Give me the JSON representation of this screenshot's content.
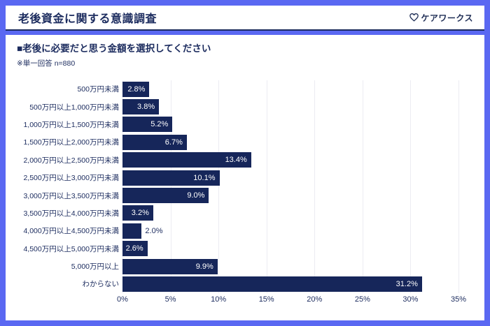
{
  "header": {
    "title": "老後資金に関する意識調査",
    "logo_text": "ケアワークス"
  },
  "question": {
    "label": "■老後に必要だと思う金額を選択してください",
    "note": "※単一回答 n=880"
  },
  "chart_data": {
    "type": "bar",
    "orientation": "horizontal",
    "title": "老後に必要だと思う金額を選択してください",
    "xlabel": "",
    "ylabel": "",
    "xlim": [
      0,
      35
    ],
    "grid": true,
    "x_ticks": [
      0,
      5,
      10,
      15,
      20,
      25,
      30,
      35
    ],
    "x_tick_labels": [
      "0%",
      "5%",
      "10%",
      "15%",
      "20%",
      "25%",
      "30%",
      "35%"
    ],
    "categories": [
      "500万円未満",
      "500万円以上1,000万円未満",
      "1,000万円以上1,500万円未満",
      "1,500万円以上2,000万円未満",
      "2,000万円以上2,500万円未満",
      "2,500万円以上3,000万円未満",
      "3,000万円以上3,500万円未満",
      "3,500万円以上4,000万円未満",
      "4,000万円以上4,500万円未満",
      "4,500万円以上5,000万円未満",
      "5,000万円以上",
      "わからない"
    ],
    "values": [
      2.8,
      3.8,
      5.2,
      6.7,
      13.4,
      10.1,
      9.0,
      3.2,
      2.0,
      2.6,
      9.9,
      31.2
    ],
    "value_labels": [
      "2.8%",
      "3.8%",
      "5.2%",
      "6.7%",
      "13.4%",
      "10.1%",
      "9.0%",
      "3.2%",
      "2.0%",
      "2.6%",
      "9.9%",
      "31.2%"
    ],
    "value_label_position": [
      "inside",
      "inside",
      "inside",
      "inside",
      "inside",
      "inside",
      "inside",
      "inside",
      "outside",
      "inside",
      "inside",
      "inside"
    ],
    "bar_color": "#16265a",
    "grid_color": "#ececf2"
  },
  "colors": {
    "frame_blue": "#5a68f2",
    "navy": "#1b2b5e",
    "white": "#ffffff"
  }
}
